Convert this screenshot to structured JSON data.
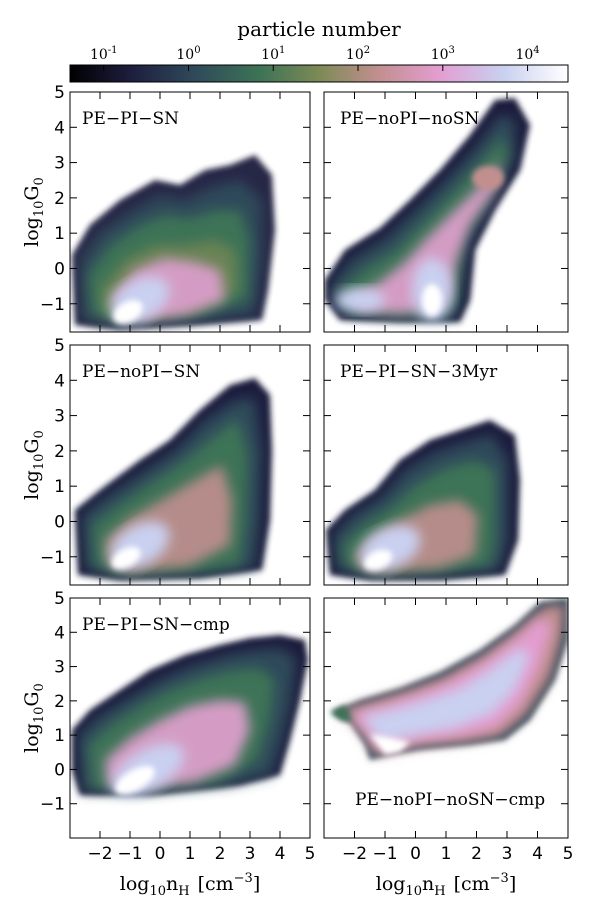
{
  "colorbar": {
    "title": "particle number",
    "ticks": [
      {
        "base": "10",
        "exp": "-1",
        "value": 0.1
      },
      {
        "base": "10",
        "exp": "0",
        "value": 1
      },
      {
        "base": "10",
        "exp": "1",
        "value": 10
      },
      {
        "base": "10",
        "exp": "2",
        "value": 100
      },
      {
        "base": "10",
        "exp": "3",
        "value": 1000
      },
      {
        "base": "10",
        "exp": "4",
        "value": 10000
      }
    ],
    "scale": "log",
    "range": [
      0.04,
      30000
    ],
    "colormap": [
      "#000000",
      "#1d1d3d",
      "#2e4a5a",
      "#3c7356",
      "#7d8a55",
      "#c28f8f",
      "#e39dd0",
      "#c9d0f0",
      "#ffffff"
    ]
  },
  "axes": {
    "ylabel": {
      "base": "log",
      "sub": "10",
      "main": "G",
      "sub2": "0"
    },
    "xlabel": {
      "base": "log",
      "sub": "10",
      "main": "n",
      "sub2": "H",
      "unit_open": "[cm",
      "unit_exp": "−3",
      "unit_close": "]"
    },
    "x_ticks": [
      "−2",
      "−1",
      "0",
      "1",
      "2",
      "3",
      "4",
      "5"
    ],
    "y_ticks_top": [
      "−1",
      "0",
      "1",
      "2",
      "3",
      "4",
      "5"
    ],
    "y_ticks_mid": [
      "−1",
      "0",
      "1",
      "2",
      "3",
      "4",
      "5"
    ],
    "y_ticks_bot": [
      "−1",
      "0",
      "1",
      "2",
      "3",
      "4",
      "5"
    ],
    "x_tick_values": [
      -2,
      -1,
      0,
      1,
      2,
      3,
      4,
      5
    ],
    "y_tick_values": [
      -1,
      0,
      1,
      2,
      3,
      4,
      5
    ]
  },
  "chart_data": [
    {
      "type": "heatmap",
      "title": "PE−PI−SN",
      "xlim": [
        -3,
        5
      ],
      "ylim": [
        -1.8,
        5
      ]
    },
    {
      "type": "heatmap",
      "title": "PE−noPI−noSN",
      "xlim": [
        -3,
        5
      ],
      "ylim": [
        -1.8,
        5
      ]
    },
    {
      "type": "heatmap",
      "title": "PE−noPI−SN",
      "xlim": [
        -3,
        5
      ],
      "ylim": [
        -1.8,
        5
      ]
    },
    {
      "type": "heatmap",
      "title": "PE−PI−SN−3Myr",
      "xlim": [
        -3,
        5
      ],
      "ylim": [
        -1.8,
        5
      ]
    },
    {
      "type": "heatmap",
      "title": "PE−PI−SN−cmp",
      "xlim": [
        -3,
        5
      ],
      "ylim": [
        -2,
        5
      ]
    },
    {
      "type": "heatmap",
      "title": "PE−noPI−noSN−cmp",
      "xlim": [
        -3,
        5
      ],
      "ylim": [
        -2,
        5
      ]
    }
  ]
}
